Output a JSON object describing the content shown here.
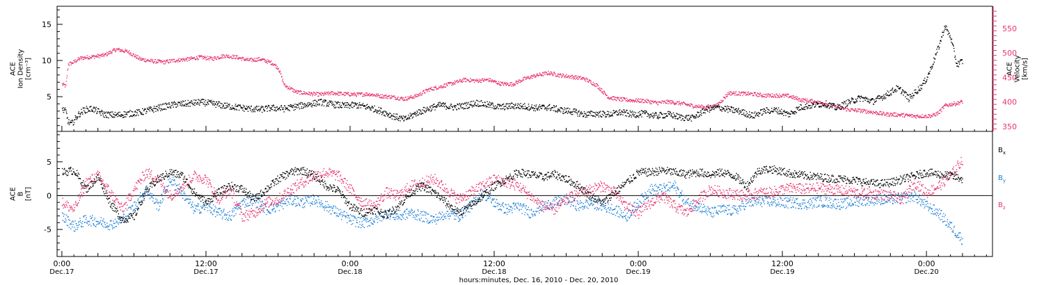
{
  "chart_data": [
    {
      "type": "line",
      "panel": "top",
      "left_axis": {
        "label_lines": [
          "ACE",
          "Ion Density",
          "[cm⁻³]"
        ],
        "ticks": [
          5,
          10,
          15
        ],
        "ylim": [
          0.2,
          17.5
        ]
      },
      "right_axis": {
        "label_lines": [
          "ACE",
          "Velocity",
          "[km/s]"
        ],
        "ticks": [
          350,
          400,
          450,
          500,
          550
        ],
        "ylim": [
          340,
          595
        ],
        "color": "#e8336a"
      },
      "series": [
        {
          "axis": "left",
          "color": "#000000",
          "x": [
            0,
            0.3,
            0.5,
            0.8,
            1.3,
            1.8,
            2.5,
            3.5,
            4.5,
            5.5,
            6.5,
            7.5,
            8.5,
            9.5,
            10.5,
            11.5,
            12.5,
            13.5,
            14.5,
            15.5,
            16.5,
            17.5,
            18.5,
            19.5,
            20.5,
            21.5,
            22.5,
            23.5,
            24.5,
            25.5,
            26.5,
            27.5,
            28.5,
            29.5,
            30.5,
            31.5,
            32.5,
            33.5,
            34.5,
            35.5,
            36.5,
            37.5,
            38.5,
            39.5,
            40.5,
            41.5,
            42.5,
            43.5,
            44.5,
            45.5,
            46.5,
            47.5,
            48.5,
            49.5,
            50.5,
            51.5,
            52.5,
            53.5,
            54.5,
            55.5,
            56.5,
            57.5,
            58.5,
            59.5,
            60.5,
            61.5,
            62.5,
            63.5,
            64.5,
            65.5,
            66.5,
            67.5,
            68.5,
            69.5,
            70,
            70.5,
            71,
            71.5,
            72,
            72.5,
            73,
            73.5,
            74,
            74.5,
            75
          ],
          "y": [
            3.3,
            3.0,
            1.5,
            1.3,
            2.5,
            3.2,
            3.4,
            2.6,
            2.5,
            2.7,
            2.9,
            3.3,
            3.7,
            4.0,
            4.1,
            4.3,
            4.1,
            3.8,
            3.6,
            3.4,
            3.3,
            3.5,
            3.4,
            3.7,
            4.0,
            4.3,
            4.0,
            3.8,
            3.9,
            3.6,
            3.1,
            2.4,
            1.9,
            2.8,
            3.4,
            3.9,
            3.6,
            3.8,
            4.2,
            3.9,
            3.6,
            3.8,
            3.7,
            3.5,
            3.6,
            3.2,
            3.0,
            2.6,
            2.7,
            2.6,
            2.9,
            2.6,
            2.7,
            2.4,
            2.6,
            2.2,
            2.1,
            3.2,
            3.6,
            3.3,
            3.0,
            2.4,
            3.1,
            3.2,
            2.6,
            3.6,
            3.9,
            4.1,
            3.5,
            4.3,
            4.9,
            4.4,
            5.2,
            6.2,
            5.8,
            4.8,
            5.6,
            6.4,
            7.6,
            9.7,
            12.0,
            14.8,
            13.2,
            9.5,
            10.0
          ]
        },
        {
          "axis": "right",
          "color": "#e8336a",
          "x": [
            0,
            0.3,
            0.5,
            0.8,
            1.5,
            2.5,
            3.5,
            4.5,
            5.5,
            6.5,
            7.5,
            8.5,
            9.5,
            10.5,
            11.5,
            12.5,
            13.5,
            14.5,
            15.5,
            16.5,
            17.0,
            17.5,
            18.0,
            18.5,
            19.5,
            20.5,
            21.5,
            22.5,
            23.5,
            24.5,
            25.5,
            26.5,
            27.5,
            28.5,
            29.5,
            30.5,
            31.5,
            32.5,
            33.5,
            34.5,
            35.5,
            36.5,
            37.5,
            38.5,
            39.5,
            40.5,
            41.5,
            42.5,
            43.5,
            44.5,
            45.5,
            46.5,
            47.5,
            48.5,
            49.5,
            50.5,
            51.5,
            52.5,
            53.5,
            54.5,
            55.5,
            56.5,
            57.5,
            58.5,
            59.5,
            60.5,
            61.5,
            62.5,
            63.5,
            64.5,
            65.5,
            66.5,
            67.5,
            68.5,
            69.5,
            70.0,
            70.5,
            71.0,
            71.5,
            72.0,
            72.5,
            73.0,
            73.5,
            74.0,
            74.5,
            75.0
          ],
          "y": [
            437,
            433,
            478,
            480,
            490,
            493,
            496,
            508,
            503,
            488,
            484,
            482,
            486,
            488,
            492,
            489,
            495,
            492,
            486,
            488,
            484,
            480,
            470,
            435,
            421,
            418,
            416,
            419,
            417,
            416,
            417,
            413,
            411,
            407,
            413,
            426,
            432,
            439,
            446,
            444,
            446,
            438,
            437,
            448,
            455,
            460,
            455,
            452,
            448,
            435,
            410,
            406,
            404,
            403,
            399,
            401,
            398,
            393,
            390,
            393,
            419,
            418,
            417,
            414,
            414,
            413,
            405,
            402,
            398,
            390,
            385,
            383,
            380,
            376,
            375,
            374,
            373,
            372,
            372,
            372,
            373,
            379,
            393,
            396,
            398,
            402
          ]
        }
      ]
    },
    {
      "type": "line",
      "panel": "bottom",
      "left_axis": {
        "label_lines": [
          "ACE",
          "B",
          "[nT]"
        ],
        "ticks": [
          -5,
          0,
          5
        ],
        "ylim": [
          -9.0,
          9.5
        ]
      },
      "series": [
        {
          "name": "B_x",
          "color": "#000000",
          "x": [
            0,
            1,
            2,
            3,
            4,
            5,
            6,
            7,
            8,
            9,
            10,
            11,
            12,
            13,
            14,
            15,
            16,
            17,
            18,
            19,
            20,
            21,
            22,
            23,
            24,
            25,
            26,
            27,
            28,
            29,
            30,
            31,
            32,
            33,
            34,
            35,
            36,
            37,
            38,
            39,
            40,
            41,
            42,
            43,
            44,
            45,
            46,
            47,
            48,
            49,
            50,
            51,
            52,
            53,
            54,
            55,
            56,
            57,
            58,
            59,
            60,
            61,
            62,
            63,
            64,
            65,
            66,
            67,
            68,
            69,
            70,
            71,
            72,
            73,
            74,
            75
          ],
          "y": [
            3.5,
            3.8,
            1.0,
            2.8,
            -1.0,
            -3.5,
            -3.0,
            0.8,
            2.5,
            3.5,
            3.0,
            0.5,
            -1.0,
            0.5,
            1.5,
            1.0,
            -0.5,
            1.0,
            2.5,
            3.5,
            3.8,
            3.0,
            1.5,
            0.8,
            -1.5,
            -2.5,
            -2.0,
            -2.8,
            -1.5,
            0.5,
            1.5,
            0.5,
            -1.0,
            -2.5,
            -1.5,
            0.0,
            1.5,
            2.5,
            3.5,
            3.2,
            2.8,
            3.2,
            2.5,
            1.5,
            0.0,
            -1.0,
            0.5,
            2.0,
            3.5,
            3.5,
            3.8,
            3.5,
            3.2,
            3.5,
            3.2,
            3.5,
            3.0,
            1.5,
            3.8,
            4.0,
            3.6,
            3.2,
            3.0,
            2.8,
            2.6,
            2.5,
            2.3,
            2.0,
            1.8,
            2.0,
            2.5,
            3.0,
            3.5,
            3.2,
            3.0,
            2.5
          ]
        },
        {
          "name": "B_y",
          "color": "#1e7fd8",
          "x": [
            0,
            1,
            2,
            3,
            4,
            5,
            6,
            7,
            8,
            9,
            10,
            11,
            12,
            13,
            14,
            15,
            16,
            17,
            18,
            19,
            20,
            21,
            22,
            23,
            24,
            25,
            26,
            27,
            28,
            29,
            30,
            31,
            32,
            33,
            34,
            35,
            36,
            37,
            38,
            39,
            40,
            41,
            42,
            43,
            44,
            45,
            46,
            47,
            48,
            49,
            50,
            51,
            52,
            53,
            54,
            55,
            56,
            57,
            58,
            59,
            60,
            61,
            62,
            63,
            64,
            65,
            66,
            67,
            68,
            69,
            70,
            71,
            72,
            73,
            74,
            75
          ],
          "y": [
            -3.0,
            -4.5,
            -3.5,
            -3.8,
            -4.2,
            -3.5,
            -1.5,
            1.0,
            -1.5,
            2.5,
            0.5,
            -2.0,
            -1.5,
            -2.5,
            -3.0,
            -1.0,
            -0.5,
            -2.0,
            -1.5,
            -0.5,
            -1.0,
            -0.5,
            -1.5,
            -2.5,
            -3.5,
            -4.0,
            -3.5,
            -2.5,
            -3.0,
            -2.5,
            -3.0,
            -3.5,
            -2.5,
            -3.0,
            -1.5,
            0.5,
            -1.0,
            -2.0,
            -1.5,
            -2.5,
            -1.5,
            -1.0,
            -0.5,
            -1.5,
            -1.0,
            -1.5,
            -2.0,
            -3.0,
            -1.0,
            1.0,
            1.0,
            1.5,
            -1.0,
            -1.5,
            -2.5,
            -2.0,
            -2.2,
            -1.0,
            -0.8,
            -0.8,
            -1.0,
            -1.0,
            -1.2,
            -0.8,
            -1.0,
            -1.2,
            -0.8,
            -0.6,
            -0.5,
            -0.5,
            -0.3,
            0.0,
            -1.5,
            -2.5,
            -4.5,
            -6.5
          ]
        },
        {
          "name": "B_z",
          "color": "#e8336a",
          "x": [
            0,
            1,
            2,
            3,
            4,
            5,
            6,
            7,
            8,
            9,
            10,
            11,
            12,
            13,
            14,
            15,
            16,
            17,
            18,
            19,
            20,
            21,
            22,
            23,
            24,
            25,
            26,
            27,
            28,
            29,
            30,
            31,
            32,
            33,
            34,
            35,
            36,
            37,
            38,
            39,
            40,
            41,
            42,
            43,
            44,
            45,
            46,
            47,
            48,
            49,
            50,
            51,
            52,
            53,
            54,
            55,
            56,
            57,
            58,
            59,
            60,
            61,
            62,
            63,
            64,
            65,
            66,
            67,
            68,
            69,
            70,
            71,
            72,
            73,
            74,
            75
          ],
          "y": [
            -1.0,
            -2.0,
            2.0,
            3.0,
            0.5,
            -2.0,
            1.0,
            3.5,
            2.5,
            0.0,
            1.5,
            3.0,
            2.5,
            -0.5,
            1.0,
            -3.0,
            -2.5,
            -1.0,
            -0.5,
            1.0,
            2.0,
            3.0,
            3.5,
            3.0,
            1.0,
            -1.0,
            -1.5,
            0.5,
            0.0,
            1.5,
            2.0,
            2.5,
            1.0,
            -0.5,
            0.5,
            1.5,
            2.5,
            2.0,
            1.5,
            0.0,
            -1.5,
            -2.0,
            -0.5,
            0.5,
            1.0,
            1.5,
            0.5,
            -1.5,
            -2.5,
            -1.0,
            0.0,
            -1.5,
            -2.5,
            -0.5,
            1.0,
            0.5,
            0.3,
            0.0,
            0.5,
            0.5,
            1.0,
            1.2,
            1.0,
            1.2,
            1.0,
            0.8,
            0.5,
            0.3,
            0.3,
            0.0,
            -0.5,
            2.0,
            0.5,
            1.5,
            3.0,
            5.5
          ]
        }
      ]
    }
  ],
  "labels": {
    "top_left_axis_lines": [
      "ACE",
      "Ion Density",
      "[cm⁻³]"
    ],
    "top_right_axis_lines": [
      "ACE",
      "Velocity",
      "[km/s]"
    ],
    "bottom_left_axis_lines": [
      "ACE",
      "B",
      "[nT]"
    ],
    "bx_base": "B",
    "bx_sub": "x",
    "by_base": "B",
    "by_sub": "y",
    "bz_base": "B",
    "bz_sub": "z"
  },
  "time_axis": {
    "ticks": [
      {
        "hour": 0,
        "time": "0:00",
        "date": "Dec.17"
      },
      {
        "hour": 12,
        "time": "12:00",
        "date": "Dec.17"
      },
      {
        "hour": 24,
        "time": "0:00",
        "date": "Dec.18"
      },
      {
        "hour": 36,
        "time": "12:00",
        "date": "Dec.18"
      },
      {
        "hour": 48,
        "time": "0:00",
        "date": "Dec.19"
      },
      {
        "hour": 60,
        "time": "12:00",
        "date": "Dec.19"
      },
      {
        "hour": 72,
        "time": "0:00",
        "date": "Dec.20"
      }
    ],
    "xlim": [
      -0.4,
      77.5
    ],
    "title": "hours:minutes, Dec. 16, 2010 - Dec. 20, 2010"
  },
  "colors": {
    "black": "#000000",
    "blue": "#1e7fd8",
    "pink": "#e8336a"
  }
}
